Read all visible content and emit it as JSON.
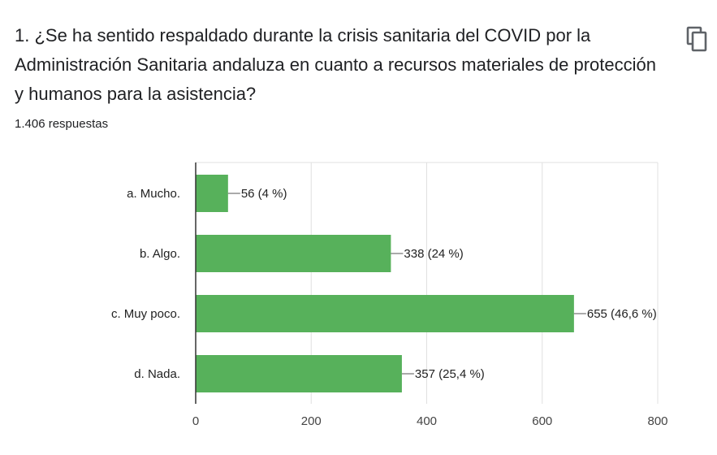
{
  "question": {
    "title": "1. ¿Se ha sentido respaldado durante la crisis sanitaria del COVID por la Administración Sanitaria andaluza en cuanto a recursos materiales de protección y humanos para la asistencia?",
    "responses": "1.406 respuestas"
  },
  "icons": {
    "copy": "copy-icon"
  },
  "colors": {
    "bar": "#57b15b",
    "grid": "#e0e0e0",
    "axis": "#333333"
  },
  "chart_data": {
    "type": "bar",
    "orientation": "horizontal",
    "categories": [
      "a. Mucho.",
      "b. Algo.",
      "c. Muy poco.",
      "d. Nada."
    ],
    "values": [
      56,
      338,
      655,
      357
    ],
    "value_labels": [
      "56 (4 %)",
      "338 (24 %)",
      "655 (46,6 %)",
      "357 (25,4 %)"
    ],
    "xlim": [
      0,
      800
    ],
    "x_ticks": [
      0,
      200,
      400,
      600,
      800
    ],
    "grid": true
  }
}
